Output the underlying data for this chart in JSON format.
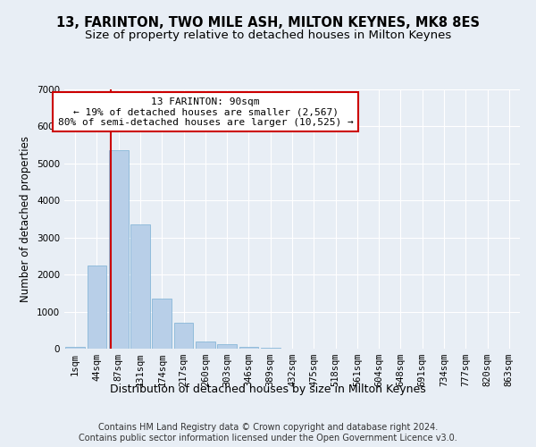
{
  "title": "13, FARINTON, TWO MILE ASH, MILTON KEYNES, MK8 8ES",
  "subtitle": "Size of property relative to detached houses in Milton Keynes",
  "xlabel": "Distribution of detached houses by size in Milton Keynes",
  "ylabel": "Number of detached properties",
  "footer_line1": "Contains HM Land Registry data © Crown copyright and database right 2024.",
  "footer_line2": "Contains public sector information licensed under the Open Government Licence v3.0.",
  "bar_labels": [
    "1sqm",
    "44sqm",
    "87sqm",
    "131sqm",
    "174sqm",
    "217sqm",
    "260sqm",
    "303sqm",
    "346sqm",
    "389sqm",
    "432sqm",
    "475sqm",
    "518sqm",
    "561sqm",
    "604sqm",
    "648sqm",
    "691sqm",
    "734sqm",
    "777sqm",
    "820sqm",
    "863sqm"
  ],
  "bar_values": [
    50,
    2250,
    5350,
    3350,
    1350,
    700,
    200,
    130,
    60,
    20,
    5,
    3,
    2,
    1,
    0,
    0,
    0,
    0,
    0,
    0,
    0
  ],
  "bar_color": "#b8cfe8",
  "bar_edge_color": "#7aafd4",
  "ylim": [
    0,
    7000
  ],
  "yticks": [
    0,
    1000,
    2000,
    3000,
    4000,
    5000,
    6000,
    7000
  ],
  "vline_x_index": 2,
  "vline_x_offset": -0.35,
  "vline_color": "#cc0000",
  "annotation_line1": "13 FARINTON: 90sqm",
  "annotation_line2": "← 19% of detached houses are smaller (2,567)",
  "annotation_line3": "80% of semi-detached houses are larger (10,525) →",
  "annotation_box_color": "#ffffff",
  "annotation_box_edge_color": "#cc0000",
  "bg_color": "#e8eef5",
  "plot_bg_color": "#e8eef5",
  "grid_color": "#ffffff",
  "title_fontsize": 10.5,
  "subtitle_fontsize": 9.5,
  "xlabel_fontsize": 9,
  "ylabel_fontsize": 8.5,
  "tick_fontsize": 7.5,
  "annotation_fontsize": 8,
  "footer_fontsize": 7
}
